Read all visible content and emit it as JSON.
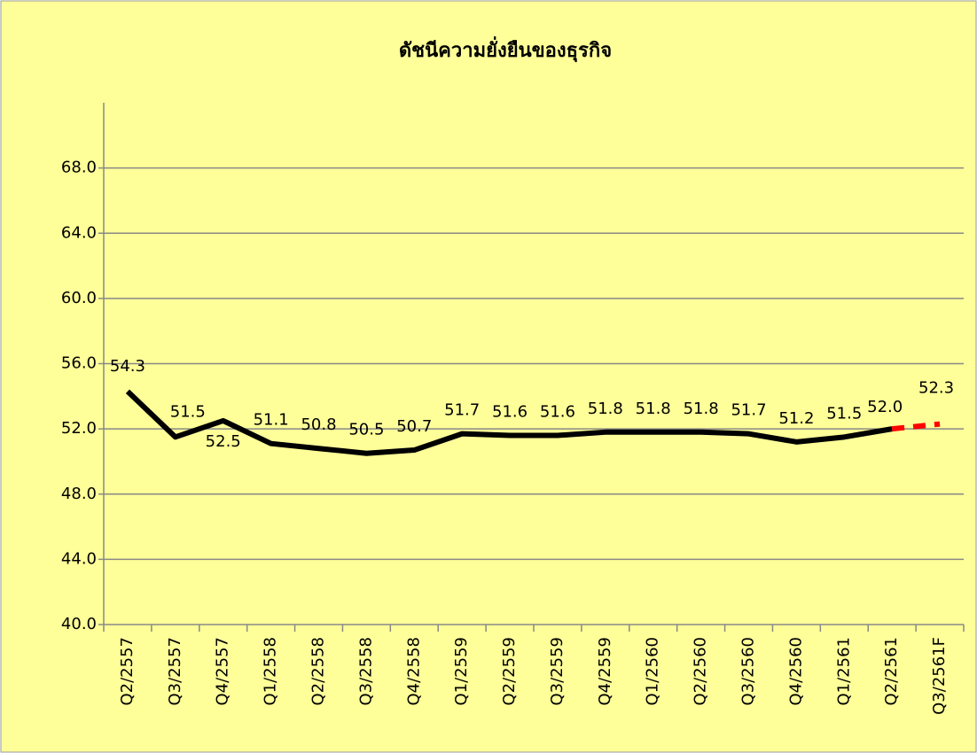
{
  "chart_data": {
    "type": "line",
    "title": "ดัชนีความยั่งยืนของธุรกิจ",
    "categories": [
      "Q2/2557",
      "Q3/2557",
      "Q4/2557",
      "Q1/2558",
      "Q2/2558",
      "Q3/2558",
      "Q4/2558",
      "Q1/2559",
      "Q2/2559",
      "Q3/2559",
      "Q4/2559",
      "Q1/2560",
      "Q2/2560",
      "Q3/2560",
      "Q4/2560",
      "Q1/2561",
      "Q2/2561",
      "Q3/2561F"
    ],
    "series": [
      {
        "color": "#000000",
        "dashed": false,
        "values": [
          54.3,
          51.5,
          52.5,
          51.1,
          50.8,
          50.5,
          50.7,
          51.7,
          51.6,
          51.6,
          51.8,
          51.8,
          51.8,
          51.7,
          51.2,
          51.5,
          52.0,
          null
        ],
        "value_labels": [
          "54.3",
          "51.5",
          "52.5",
          "51.1",
          "50.8",
          "50.5",
          "50.7",
          "51.7",
          "51.6",
          "51.6",
          "51.8",
          "51.8",
          "51.8",
          "51.7",
          "51.2",
          "51.5",
          "52.0",
          null
        ]
      },
      {
        "color": "#ff0000",
        "dashed": true,
        "values": [
          null,
          null,
          null,
          null,
          null,
          null,
          null,
          null,
          null,
          null,
          null,
          null,
          null,
          null,
          null,
          null,
          52.0,
          52.3
        ],
        "value_labels": [
          null,
          null,
          null,
          null,
          null,
          null,
          null,
          null,
          null,
          null,
          null,
          null,
          null,
          null,
          null,
          null,
          null,
          "52.3"
        ]
      }
    ],
    "ylim": [
      40,
      72
    ],
    "yticks": [
      {
        "value": 40,
        "label": "40.0"
      },
      {
        "value": 44,
        "label": "44.0"
      },
      {
        "value": 48,
        "label": "48.0"
      },
      {
        "value": 52,
        "label": "52.0"
      },
      {
        "value": 56,
        "label": "56.0"
      },
      {
        "value": 60,
        "label": "60.0"
      },
      {
        "value": 64,
        "label": "64.0"
      },
      {
        "value": 68,
        "label": "68.0"
      }
    ],
    "grid": true
  }
}
